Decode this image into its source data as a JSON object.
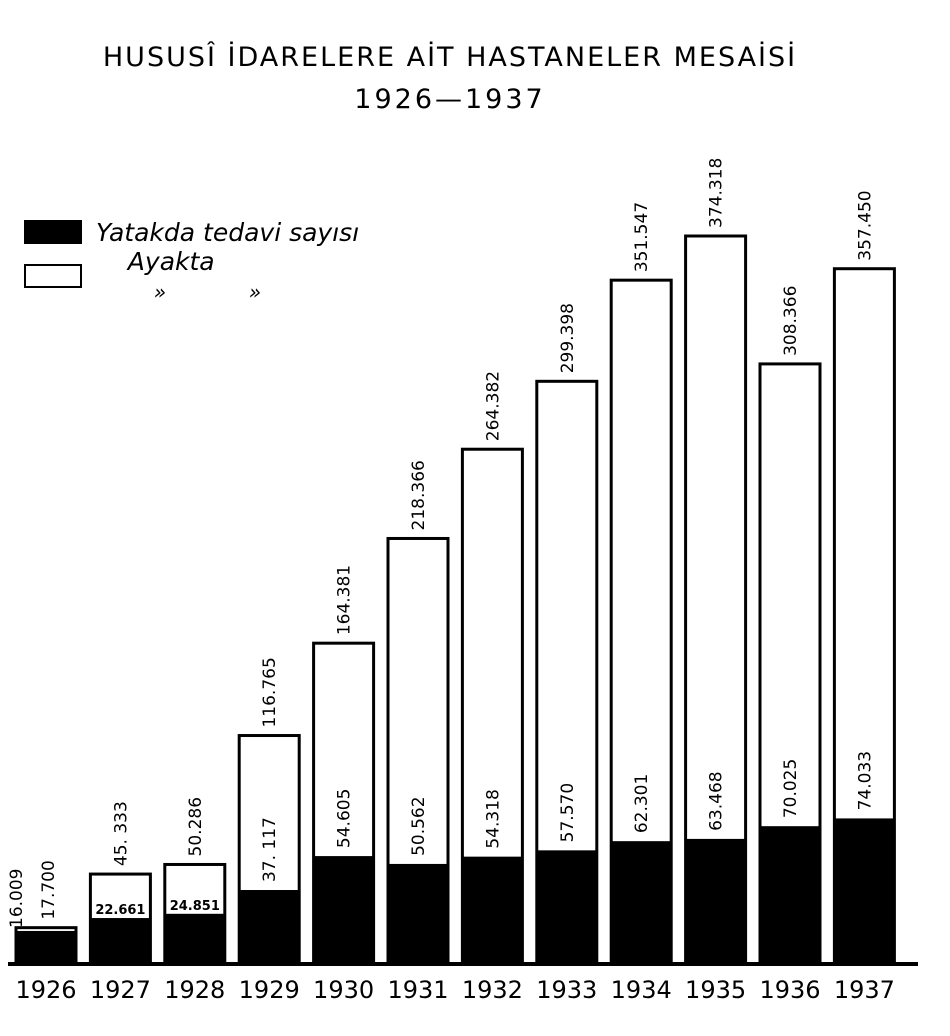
{
  "chart_data": {
    "type": "bar",
    "title": "HUSUSÎ İDARELERE AİT HASTANELER MESAİSİ",
    "subtitle": "1926—1937",
    "categories": [
      "1926",
      "1927",
      "1928",
      "1929",
      "1930",
      "1931",
      "1932",
      "1933",
      "1934",
      "1935",
      "1936",
      "1937"
    ],
    "series": [
      {
        "name": "Yatakda tedavi sayısı",
        "color": "#000000",
        "values": [
          16009,
          22661,
          24851,
          37117,
          54605,
          50562,
          54318,
          57570,
          62301,
          63468,
          70025,
          74033
        ],
        "labels": [
          "16.009",
          "22.661",
          "24.851",
          "37. 117",
          "54.605",
          "50.562",
          "54.318",
          "57.570",
          "62.301",
          "63.468",
          "70.025",
          "74.033"
        ]
      },
      {
        "name": "Ayakta",
        "color": "#ffffff",
        "values": [
          17700,
          45333,
          50286,
          116765,
          164381,
          218366,
          264382,
          299398,
          351547,
          374318,
          308366,
          357450
        ],
        "labels": [
          "17.700",
          "45. 333",
          "50.286",
          "116.765",
          "164.381",
          "218.366",
          "264.382",
          "299.398",
          "351.547",
          "374.318",
          "308.366",
          "357.450"
        ]
      }
    ],
    "ylim": [
      0,
      380000
    ],
    "legend": {
      "position": "top-left",
      "ditto": "»             »"
    },
    "grid": false
  }
}
